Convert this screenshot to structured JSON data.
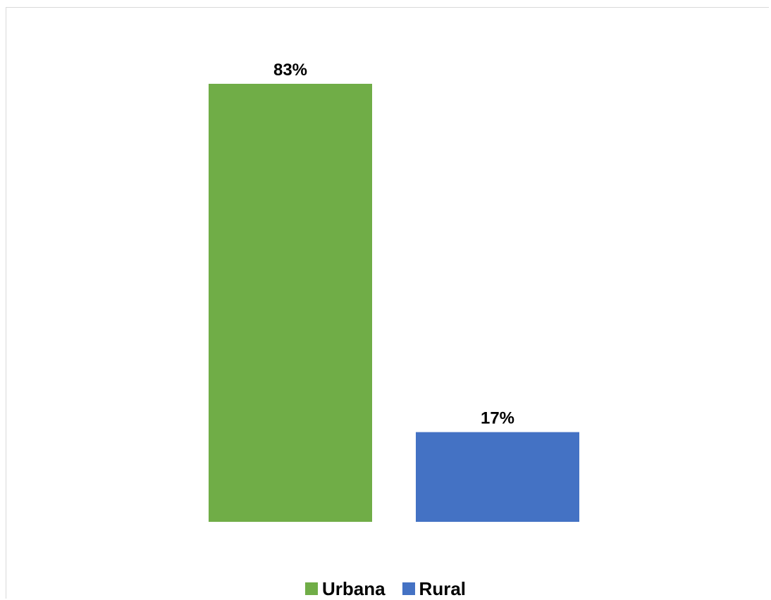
{
  "chart_data": {
    "type": "bar",
    "categories": [
      "Urbana",
      "Rural"
    ],
    "values": [
      83,
      17
    ],
    "value_labels": [
      "83%",
      "17%"
    ],
    "colors": [
      "#70ad47",
      "#4472c4"
    ],
    "ylim": [
      0,
      83
    ],
    "grid": false,
    "legend_position": "bottom",
    "title": "",
    "xlabel": "",
    "ylabel": ""
  }
}
